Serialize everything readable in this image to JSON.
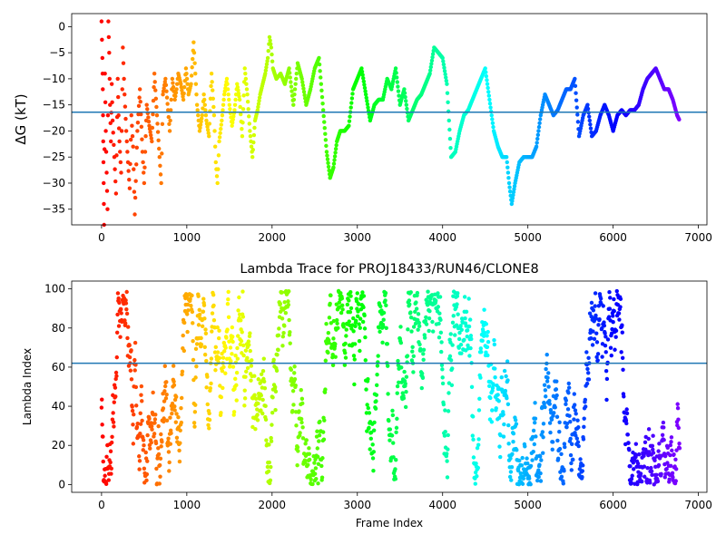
{
  "chart_data": [
    {
      "type": "scatter",
      "title": "",
      "xlabel": "",
      "ylabel": "ΔG (kT)",
      "ylabel_italic_part": "G",
      "xlim": [
        -350,
        7100
      ],
      "ylim": [
        -38,
        2.5
      ],
      "xticks": [
        0,
        1000,
        2000,
        3000,
        4000,
        5000,
        6000,
        7000
      ],
      "yticks": [
        0,
        -5,
        -10,
        -15,
        -20,
        -25,
        -30,
        -35
      ],
      "hline": -16.4,
      "hline_color": "#1f77b4",
      "colormap": "rainbow (reversed: red at frame 0, violet at last frame)",
      "x_max": 6780,
      "grid": false,
      "points": [
        [
          0,
          1
        ],
        [
          10,
          -6
        ],
        [
          15,
          -12
        ],
        [
          20,
          -22
        ],
        [
          25,
          -30
        ],
        [
          30,
          -38
        ],
        [
          40,
          -9
        ],
        [
          50,
          -20
        ],
        [
          60,
          -28
        ],
        [
          70,
          -35
        ],
        [
          80,
          1
        ],
        [
          90,
          -5
        ],
        [
          100,
          -15
        ],
        [
          110,
          -22
        ],
        [
          120,
          -11
        ],
        [
          130,
          -18
        ],
        [
          150,
          -25
        ],
        [
          170,
          -32
        ],
        [
          190,
          -10
        ],
        [
          200,
          -17
        ],
        [
          210,
          -22
        ],
        [
          230,
          -28
        ],
        [
          250,
          -4
        ],
        [
          270,
          -13
        ],
        [
          290,
          -20
        ],
        [
          310,
          -26
        ],
        [
          330,
          -31
        ],
        [
          350,
          -17
        ],
        [
          370,
          -23
        ],
        [
          390,
          -36
        ],
        [
          420,
          -20
        ],
        [
          450,
          -12
        ],
        [
          480,
          -24
        ],
        [
          500,
          -30
        ],
        [
          530,
          -15
        ],
        [
          560,
          -19
        ],
        [
          590,
          -22
        ],
        [
          620,
          -9
        ],
        [
          650,
          -17
        ],
        [
          680,
          -25
        ],
        [
          700,
          -30
        ],
        [
          720,
          -13
        ],
        [
          750,
          -10
        ],
        [
          780,
          -16
        ],
        [
          800,
          -20
        ],
        [
          830,
          -10
        ],
        [
          860,
          -14
        ],
        [
          880,
          -12
        ],
        [
          900,
          -9
        ],
        [
          930,
          -11
        ],
        [
          960,
          -14
        ],
        [
          990,
          -8
        ],
        [
          1020,
          -13
        ],
        [
          1050,
          -11
        ],
        [
          1080,
          -3
        ],
        [
          1100,
          -9
        ],
        [
          1120,
          -15
        ],
        [
          1150,
          -20
        ],
        [
          1180,
          -17
        ],
        [
          1200,
          -13
        ],
        [
          1230,
          -18
        ],
        [
          1260,
          -21
        ],
        [
          1290,
          -9
        ],
        [
          1320,
          -17
        ],
        [
          1340,
          -26
        ],
        [
          1360,
          -30
        ],
        [
          1380,
          -22
        ],
        [
          1410,
          -18
        ],
        [
          1440,
          -13
        ],
        [
          1470,
          -10
        ],
        [
          1500,
          -15
        ],
        [
          1530,
          -19
        ],
        [
          1560,
          -16
        ],
        [
          1590,
          -11
        ],
        [
          1620,
          -14
        ],
        [
          1650,
          -21
        ],
        [
          1680,
          -8
        ],
        [
          1710,
          -13
        ],
        [
          1740,
          -20
        ],
        [
          1770,
          -25
        ],
        [
          1800,
          -18
        ],
        [
          1830,
          -16
        ],
        [
          1860,
          -13
        ],
        [
          1890,
          -11
        ],
        [
          1920,
          -9
        ],
        [
          1950,
          -6
        ],
        [
          1970,
          -2
        ],
        [
          1990,
          -4
        ],
        [
          2010,
          -8
        ],
        [
          2050,
          -10
        ],
        [
          2100,
          -9
        ],
        [
          2150,
          -11
        ],
        [
          2200,
          -8
        ],
        [
          2250,
          -15
        ],
        [
          2300,
          -7
        ],
        [
          2350,
          -10
        ],
        [
          2400,
          -15
        ],
        [
          2450,
          -12
        ],
        [
          2500,
          -8
        ],
        [
          2550,
          -6
        ],
        [
          2600,
          -16
        ],
        [
          2640,
          -24
        ],
        [
          2680,
          -29
        ],
        [
          2720,
          -27
        ],
        [
          2760,
          -22
        ],
        [
          2800,
          -20
        ],
        [
          2850,
          -20
        ],
        [
          2900,
          -19
        ],
        [
          2950,
          -12
        ],
        [
          3000,
          -10
        ],
        [
          3050,
          -8
        ],
        [
          3100,
          -13
        ],
        [
          3150,
          -18
        ],
        [
          3200,
          -15
        ],
        [
          3250,
          -14
        ],
        [
          3300,
          -14
        ],
        [
          3350,
          -10
        ],
        [
          3400,
          -12
        ],
        [
          3450,
          -8
        ],
        [
          3500,
          -15
        ],
        [
          3550,
          -12
        ],
        [
          3600,
          -18
        ],
        [
          3650,
          -16
        ],
        [
          3700,
          -14
        ],
        [
          3750,
          -13
        ],
        [
          3800,
          -11
        ],
        [
          3850,
          -9
        ],
        [
          3900,
          -4
        ],
        [
          3950,
          -5
        ],
        [
          4000,
          -6
        ],
        [
          4050,
          -11
        ],
        [
          4100,
          -25
        ],
        [
          4150,
          -24
        ],
        [
          4200,
          -20
        ],
        [
          4250,
          -17
        ],
        [
          4300,
          -16
        ],
        [
          4350,
          -14
        ],
        [
          4400,
          -12
        ],
        [
          4450,
          -10
        ],
        [
          4500,
          -8
        ],
        [
          4550,
          -14
        ],
        [
          4600,
          -20
        ],
        [
          4650,
          -23
        ],
        [
          4700,
          -25
        ],
        [
          4750,
          -25
        ],
        [
          4780,
          -30
        ],
        [
          4810,
          -34
        ],
        [
          4850,
          -30
        ],
        [
          4900,
          -26
        ],
        [
          4950,
          -25
        ],
        [
          5000,
          -25
        ],
        [
          5050,
          -25
        ],
        [
          5100,
          -23
        ],
        [
          5150,
          -17
        ],
        [
          5200,
          -13
        ],
        [
          5250,
          -15
        ],
        [
          5300,
          -17
        ],
        [
          5350,
          -16
        ],
        [
          5400,
          -14
        ],
        [
          5450,
          -12
        ],
        [
          5500,
          -12
        ],
        [
          5550,
          -10
        ],
        [
          5600,
          -21
        ],
        [
          5650,
          -17
        ],
        [
          5700,
          -15
        ],
        [
          5750,
          -21
        ],
        [
          5800,
          -20
        ],
        [
          5850,
          -17
        ],
        [
          5900,
          -15
        ],
        [
          5950,
          -17
        ],
        [
          6000,
          -20
        ],
        [
          6050,
          -17
        ],
        [
          6100,
          -16
        ],
        [
          6150,
          -17
        ],
        [
          6200,
          -16
        ],
        [
          6250,
          -16
        ],
        [
          6300,
          -15
        ],
        [
          6350,
          -12
        ],
        [
          6400,
          -10
        ],
        [
          6450,
          -9
        ],
        [
          6500,
          -8
        ],
        [
          6550,
          -10
        ],
        [
          6600,
          -12
        ],
        [
          6650,
          -12
        ],
        [
          6700,
          -14
        ],
        [
          6750,
          -17
        ],
        [
          6780,
          -18
        ]
      ]
    },
    {
      "type": "scatter",
      "title": "Lambda Trace for PROJ18433/RUN46/CLONE8",
      "xlabel": "Frame Index",
      "ylabel": "Lambda Index",
      "xlim": [
        -350,
        7100
      ],
      "ylim": [
        -4,
        104
      ],
      "xticks": [
        0,
        1000,
        2000,
        3000,
        4000,
        5000,
        6000,
        7000
      ],
      "yticks": [
        0,
        20,
        40,
        60,
        80,
        100
      ],
      "hline": 62,
      "hline_color": "#1f77b4",
      "colormap": "rainbow (reversed: red at frame 0, violet at last frame)",
      "x_max": 6780,
      "grid": false,
      "description": "dense random-walk scatter of lambda index (0-99) vs frame index"
    }
  ]
}
